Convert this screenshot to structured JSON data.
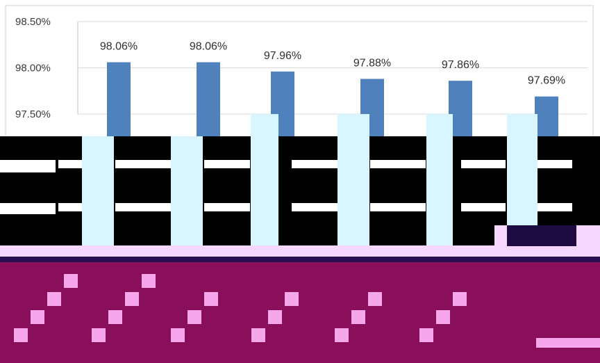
{
  "chart_data": {
    "type": "bar",
    "categories": [
      "",
      "",
      "",
      "",
      "",
      ""
    ],
    "values": [
      98.06,
      98.06,
      97.96,
      97.88,
      97.86,
      97.69
    ],
    "data_labels": [
      "98.06%",
      "98.06%",
      "97.96%",
      "97.88%",
      "97.86%",
      "97.69%"
    ],
    "y_ticks": [
      "98.50%",
      "98.00%",
      "97.50%"
    ],
    "y_tick_values": [
      98.5,
      98.0,
      97.5
    ],
    "title": "",
    "xlabel": "",
    "ylabel": "",
    "ylim": [
      97.5,
      98.5
    ],
    "grid": true,
    "legend": "none",
    "colors": {
      "bar": "#4f81bd",
      "grid": "#d9d9d9",
      "overlay_dark": "#000000",
      "overlay_magenta": "#8a0f5a",
      "overlay_cyan": "#d8f6ff",
      "overlay_pink": "#f6a6ea",
      "overlay_navy": "#2a0f55"
    }
  }
}
